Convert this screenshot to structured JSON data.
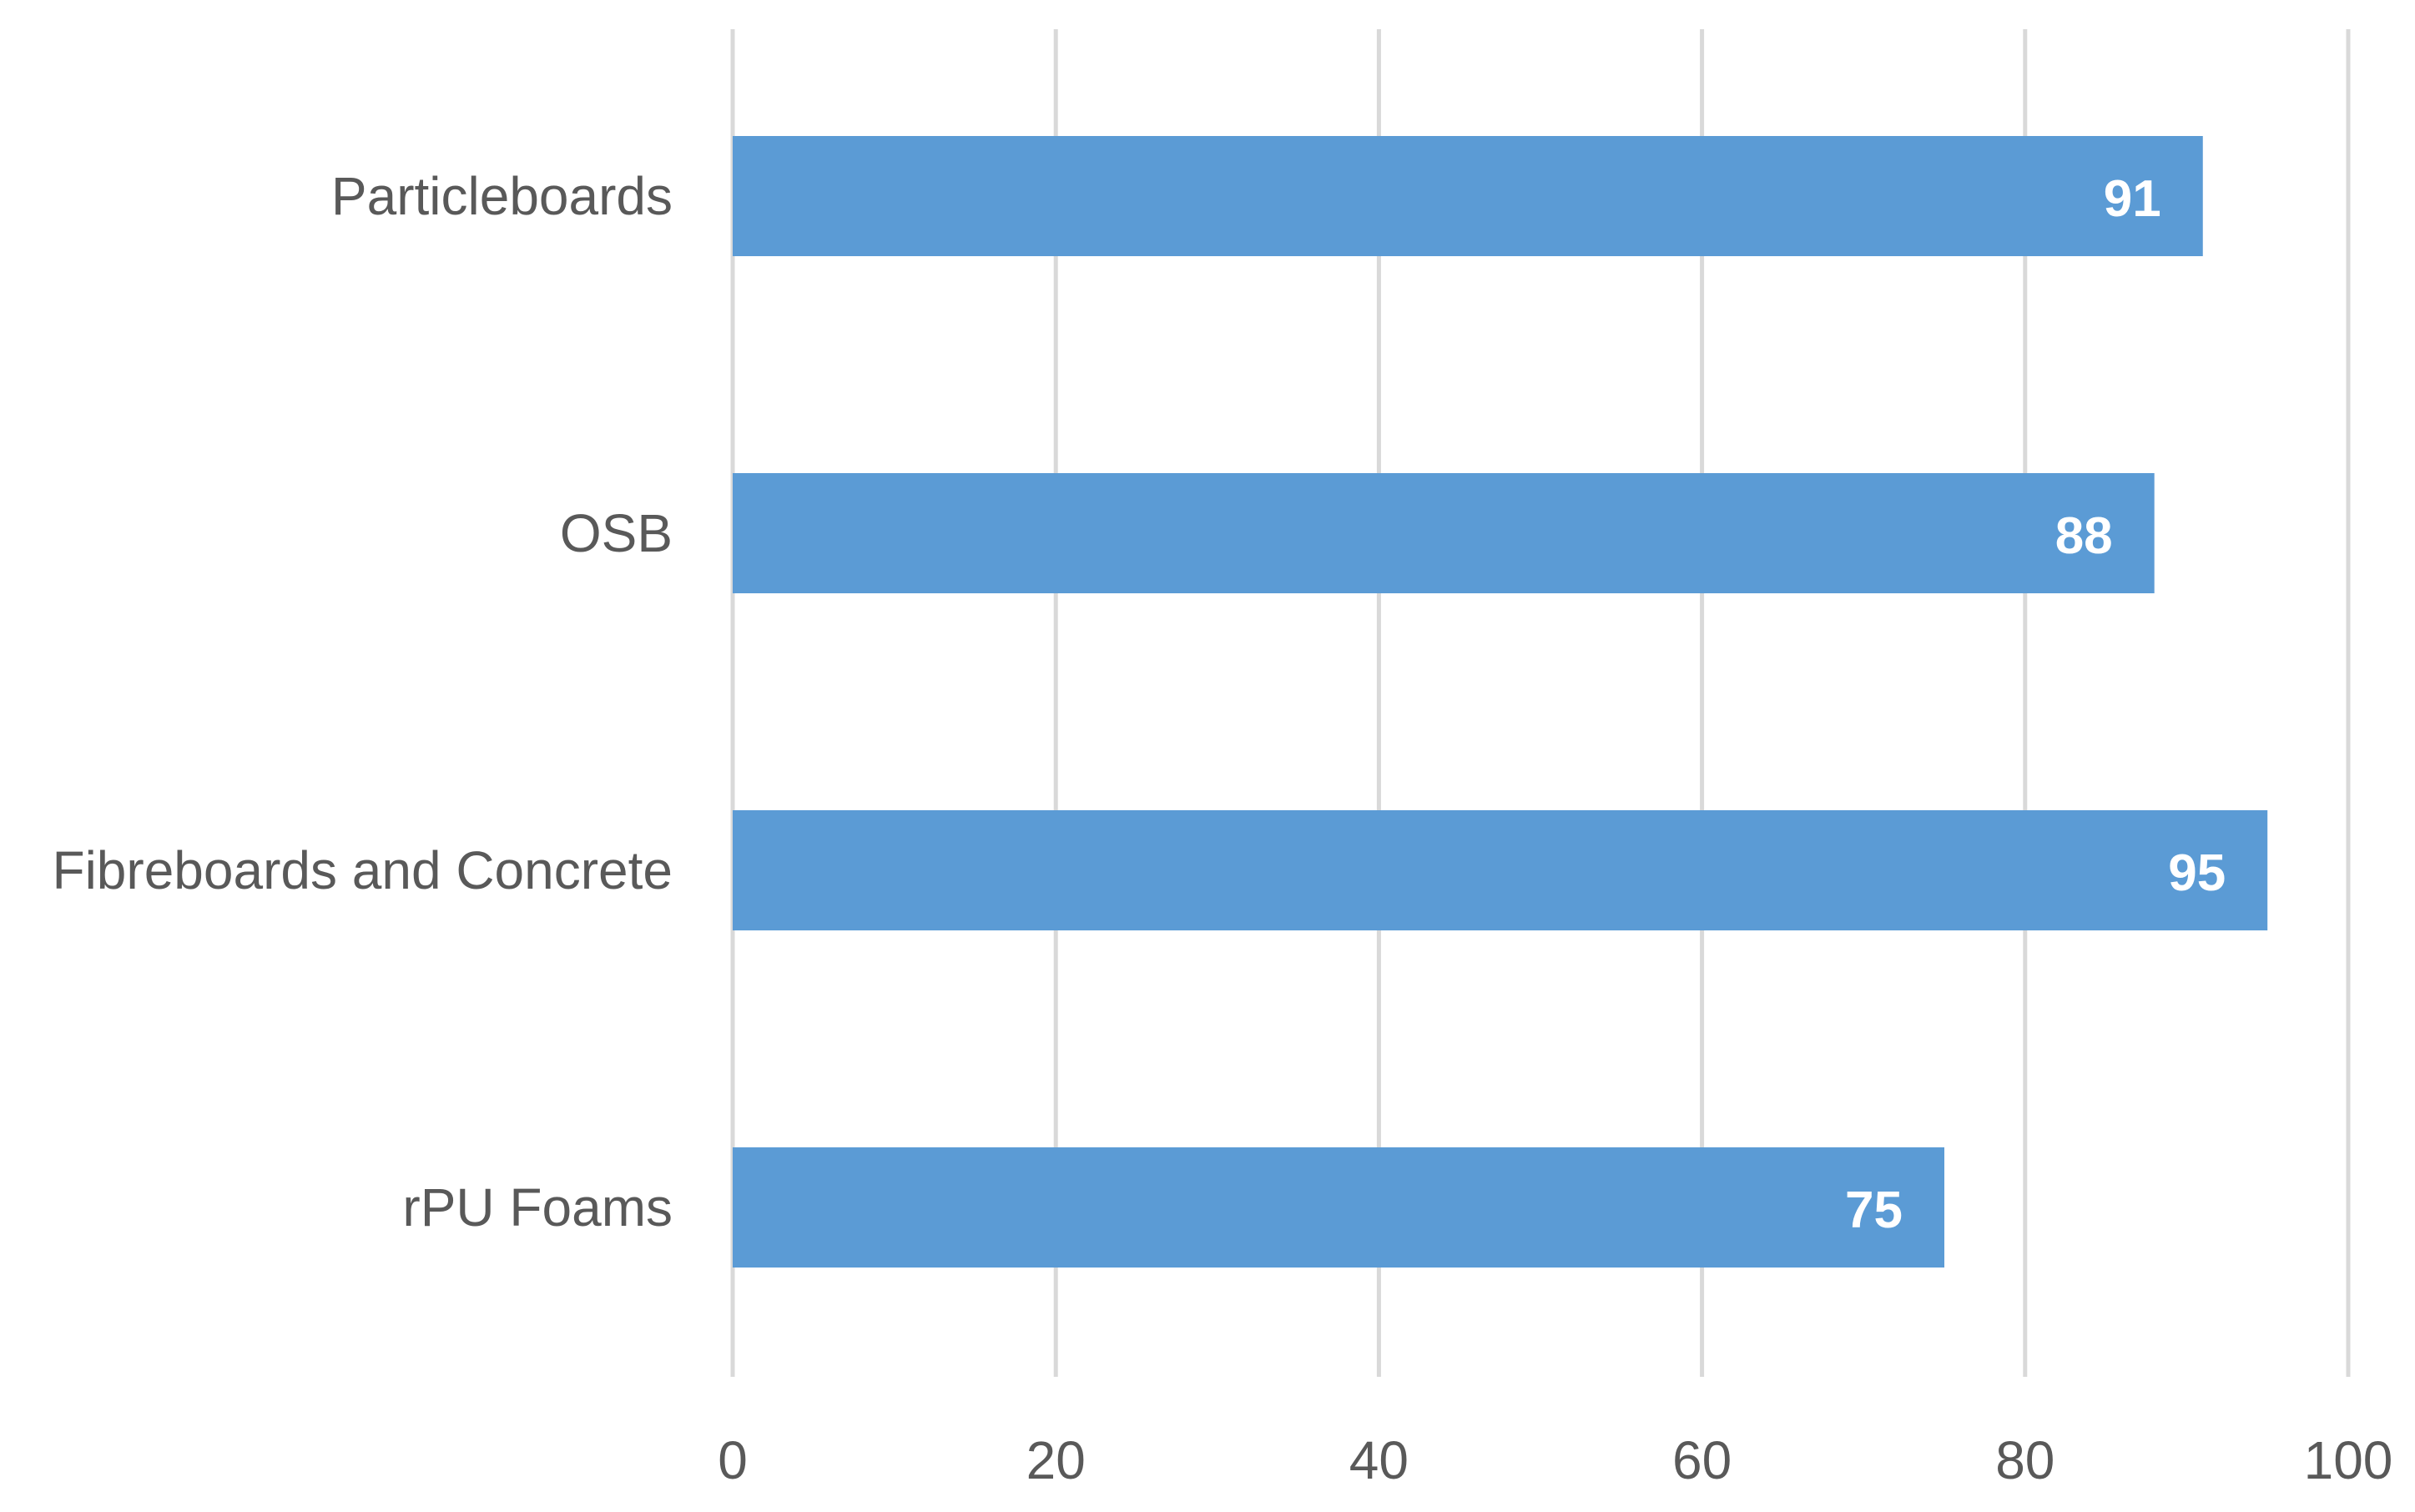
{
  "chart_data": {
    "type": "bar",
    "orientation": "horizontal",
    "title": "",
    "xlabel": "",
    "ylabel": "",
    "categories": [
      "Particleboards",
      "OSB",
      "Fibreboards and Concrete",
      "rPU Foams"
    ],
    "values": [
      91,
      88,
      95,
      75
    ],
    "data_labels": [
      "91",
      "88",
      "95",
      "75"
    ],
    "xlim": [
      0,
      100
    ],
    "x_ticks": [
      0,
      20,
      40,
      60,
      80,
      100
    ],
    "x_tick_labels": [
      "0",
      "20",
      "40",
      "60",
      "80",
      "100"
    ],
    "grid": "vertical",
    "legend": "none",
    "colors": {
      "bar": "#5B9BD5",
      "grid": "#D9D9D9",
      "axis_text": "#595959",
      "data_label": "#FFFFFF"
    }
  }
}
